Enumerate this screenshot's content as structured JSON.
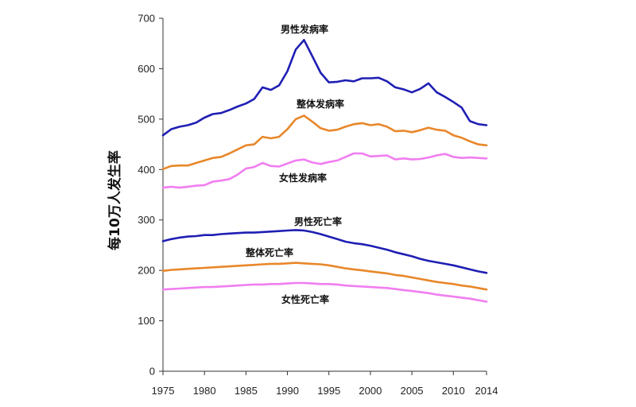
{
  "chart_data": {
    "type": "line",
    "ylabel": "每10万人发生率",
    "xlim": [
      1975,
      2014
    ],
    "ylim": [
      0,
      700
    ],
    "x_ticks": [
      "1975",
      "1980",
      "1985",
      "1990",
      "1995",
      "2000",
      "2005",
      "2010",
      "2014"
    ],
    "y_ticks": [
      "0",
      "100",
      "200",
      "300",
      "400",
      "500",
      "600",
      "700"
    ],
    "x": [
      1975,
      1976,
      1977,
      1978,
      1979,
      1980,
      1981,
      1982,
      1983,
      1984,
      1985,
      1986,
      1987,
      1988,
      1989,
      1990,
      1991,
      1992,
      1993,
      1994,
      1995,
      1996,
      1997,
      1998,
      1999,
      2000,
      2001,
      2002,
      2003,
      2004,
      2005,
      2006,
      2007,
      2008,
      2009,
      2010,
      2011,
      2012,
      2013,
      2014
    ],
    "series": [
      {
        "name": "男性发病率",
        "color": "#1f1fb4",
        "values": [
          468,
          480,
          485,
          488,
          493,
          503,
          510,
          512,
          518,
          525,
          531,
          540,
          563,
          558,
          567,
          595,
          638,
          657,
          625,
          592,
          573,
          574,
          577,
          575,
          581,
          581,
          582,
          575,
          563,
          559,
          553,
          560,
          571,
          553,
          544,
          534,
          523,
          496,
          490,
          488
        ]
      },
      {
        "name": "整体发病率",
        "color": "#e8872a",
        "values": [
          401,
          407,
          408,
          408,
          413,
          418,
          423,
          425,
          432,
          440,
          448,
          450,
          465,
          462,
          465,
          480,
          500,
          507,
          495,
          482,
          477,
          479,
          485,
          490,
          492,
          488,
          490,
          485,
          476,
          477,
          474,
          478,
          483,
          479,
          477,
          468,
          463,
          456,
          450,
          448
        ]
      },
      {
        "name": "女性发病率",
        "color": "#f07ef0",
        "values": [
          364,
          366,
          364,
          366,
          368,
          369,
          376,
          378,
          381,
          390,
          402,
          405,
          413,
          407,
          406,
          412,
          418,
          420,
          414,
          411,
          415,
          418,
          425,
          432,
          432,
          426,
          427,
          428,
          420,
          422,
          420,
          421,
          424,
          428,
          431,
          425,
          423,
          424,
          423,
          422
        ]
      },
      {
        "name": "男性死亡率",
        "color": "#1f1fb4",
        "values": [
          258,
          262,
          265,
          267,
          268,
          270,
          270,
          272,
          273,
          274,
          275,
          275,
          276,
          277,
          278,
          279,
          280,
          279,
          276,
          272,
          267,
          262,
          257,
          254,
          252,
          249,
          245,
          241,
          236,
          232,
          228,
          223,
          219,
          216,
          213,
          210,
          206,
          202,
          198,
          195
        ]
      },
      {
        "name": "整体死亡率",
        "color": "#e8872a",
        "values": [
          199,
          201,
          202,
          203,
          204,
          205,
          206,
          207,
          208,
          209,
          210,
          211,
          212,
          213,
          213,
          214,
          215,
          214,
          213,
          212,
          210,
          207,
          204,
          202,
          200,
          198,
          196,
          194,
          191,
          189,
          186,
          183,
          180,
          177,
          175,
          173,
          170,
          168,
          165,
          162
        ]
      },
      {
        "name": "女性死亡率",
        "color": "#f07ef0",
        "values": [
          162,
          163,
          164,
          165,
          166,
          167,
          167,
          168,
          169,
          170,
          171,
          172,
          172,
          173,
          173,
          174,
          175,
          175,
          174,
          173,
          173,
          172,
          170,
          169,
          168,
          167,
          166,
          165,
          163,
          161,
          159,
          157,
          155,
          152,
          150,
          148,
          146,
          144,
          141,
          138
        ]
      }
    ]
  }
}
